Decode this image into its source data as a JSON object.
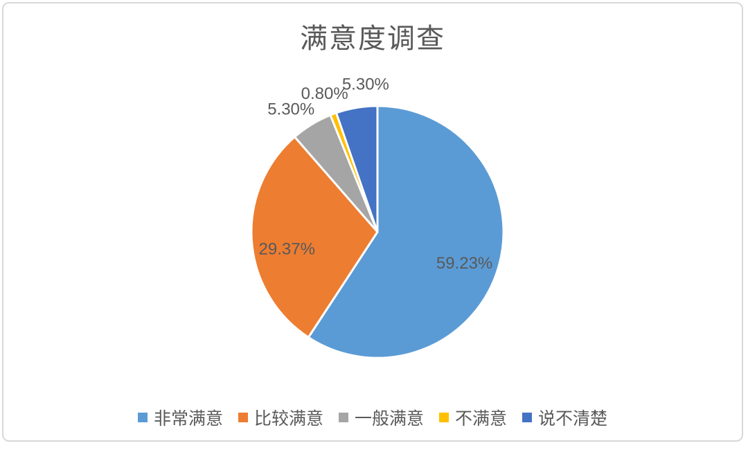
{
  "page": {
    "background": "#ffffff",
    "card_border_color": "#d8d8d8"
  },
  "chart_data": {
    "type": "pie",
    "title": "满意度调查",
    "categories": [
      "非常满意",
      "比较满意",
      "一般满意",
      "不满意",
      "说不清楚"
    ],
    "values": [
      59.23,
      29.37,
      5.3,
      0.8,
      5.3
    ],
    "data_labels": [
      "59.23%",
      "29.37%",
      "5.30%",
      "0.80%",
      "5.30%"
    ],
    "colors": [
      "#5B9BD5",
      "#ED7D31",
      "#A5A5A5",
      "#FFC000",
      "#4472C4"
    ],
    "start_angle_deg": 0,
    "direction": "clockwise",
    "slice_separator_color": "#ffffff",
    "label_color": "#595959",
    "title_color": "#595959",
    "legend_position": "bottom",
    "grid": false
  }
}
